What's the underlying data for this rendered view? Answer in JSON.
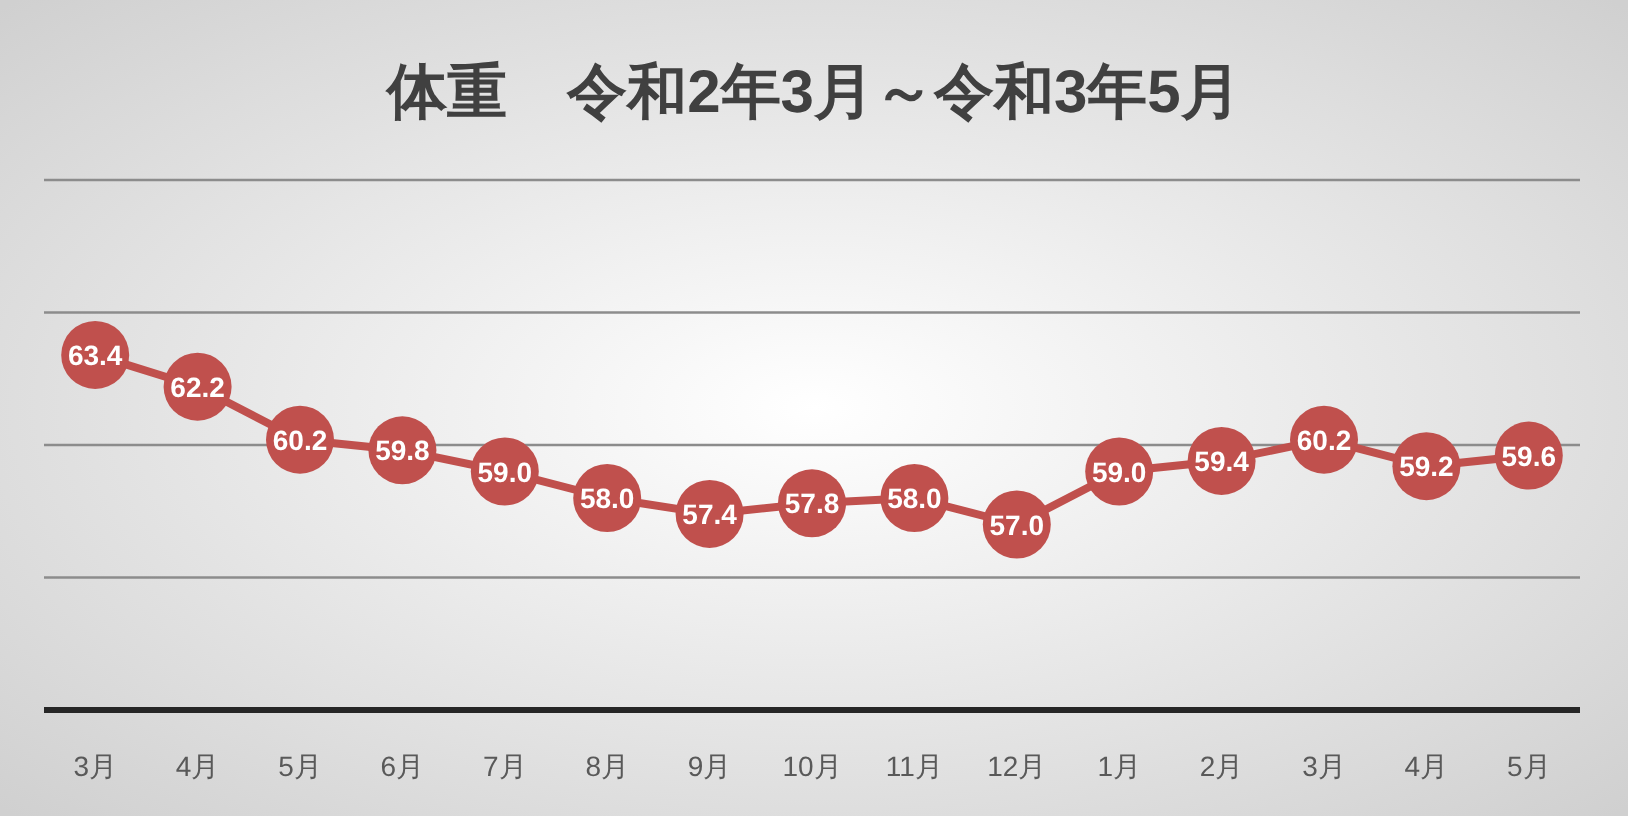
{
  "chart_data": {
    "type": "line",
    "title": "体重　令和2年3月～令和3年5月",
    "categories": [
      "3月",
      "4月",
      "5月",
      "6月",
      "7月",
      "8月",
      "9月",
      "10月",
      "11月",
      "12月",
      "1月",
      "2月",
      "3月",
      "4月",
      "5月"
    ],
    "series": [
      {
        "color": "#c0504d",
        "values": [
          63.4,
          62.2,
          60.2,
          59.8,
          59.0,
          58.0,
          57.4,
          57.8,
          58.0,
          57.0,
          59.0,
          59.4,
          60.2,
          59.2,
          59.6
        ],
        "value_labels": [
          "63.4",
          "62.2",
          "60.2",
          "59.8",
          "59.0",
          "58.0",
          "57.4",
          "57.8",
          "58.0",
          "57.0",
          "59.0",
          "59.4",
          "60.2",
          "59.2",
          "59.6"
        ]
      }
    ],
    "ylim": [
      50,
      70
    ],
    "yticks": [
      {
        "value": 50,
        "label": null
      },
      {
        "value": 55,
        "label": null
      },
      {
        "value": 60,
        "label": null
      },
      {
        "value": 65,
        "label": null
      },
      {
        "value": 70,
        "label": null
      }
    ],
    "grid": "y",
    "tick_labels": "x",
    "marker": "circle",
    "line_style": "solid"
  }
}
